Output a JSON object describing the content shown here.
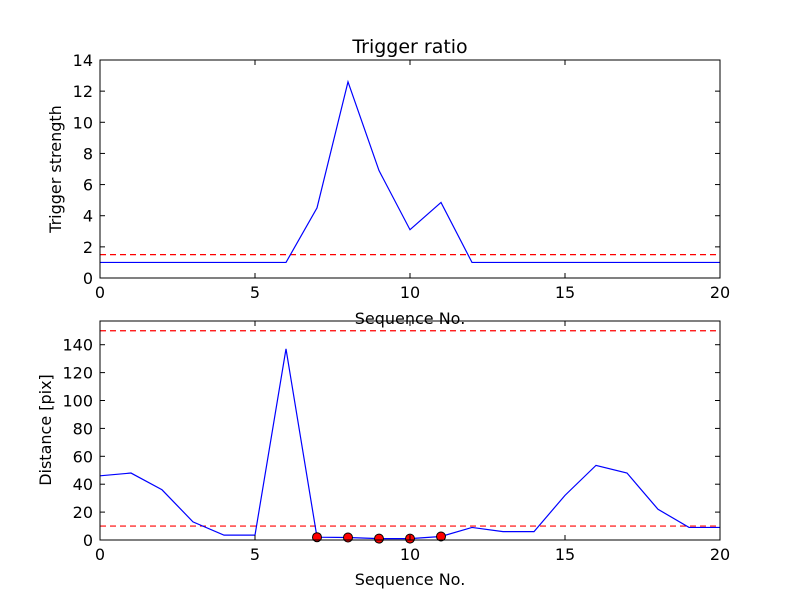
{
  "chart_data": [
    {
      "type": "line",
      "title": "Trigger ratio",
      "xlabel": "Sequence No.",
      "ylabel": "Trigger strength",
      "xlim": [
        0,
        20
      ],
      "ylim": [
        0,
        14
      ],
      "xticks": [
        0,
        5,
        10,
        15,
        20
      ],
      "yticks": [
        0,
        2,
        4,
        6,
        8,
        10,
        12,
        14
      ],
      "grid": false,
      "series": [
        {
          "color": "#0000ff",
          "style": "solid",
          "x": [
            0,
            1,
            2,
            3,
            4,
            5,
            6,
            7,
            8,
            9,
            10,
            11,
            12,
            13,
            14,
            15,
            16,
            17,
            18,
            19,
            20
          ],
          "y": [
            1.0,
            1.0,
            1.0,
            1.0,
            1.0,
            1.0,
            1.0,
            4.5,
            12.6,
            6.9,
            3.1,
            4.85,
            1.0,
            1.0,
            1.0,
            1.0,
            1.0,
            1.0,
            1.0,
            1.0,
            1.0
          ]
        }
      ],
      "hlines": [
        {
          "y": 1.5,
          "color": "#ff0000",
          "style": "dashed"
        }
      ],
      "markers": []
    },
    {
      "type": "line",
      "title": "",
      "xlabel": "Sequence No.",
      "ylabel": "Distance [pix]",
      "xlim": [
        0,
        20
      ],
      "ylim": [
        0,
        157
      ],
      "xticks": [
        0,
        5,
        10,
        15,
        20
      ],
      "yticks": [
        0,
        20,
        40,
        60,
        80,
        100,
        120,
        140
      ],
      "grid": false,
      "series": [
        {
          "color": "#0000ff",
          "style": "solid",
          "x": [
            0,
            1,
            2,
            3,
            4,
            5,
            6,
            7,
            8,
            9,
            10,
            11,
            12,
            13,
            14,
            15,
            16,
            17,
            18,
            19,
            20
          ],
          "y": [
            46,
            48,
            36,
            13,
            3.5,
            3.5,
            137,
            2,
            1.8,
            1,
            1,
            2.5,
            9,
            6,
            6,
            32,
            53.5,
            48,
            22,
            9,
            9
          ]
        }
      ],
      "hlines": [
        {
          "y": 150,
          "color": "#ff0000",
          "style": "dashed"
        },
        {
          "y": 10,
          "color": "#ff0000",
          "style": "dashed"
        }
      ],
      "markers": [
        {
          "x": 7,
          "y": 2,
          "color": "#ff0000"
        },
        {
          "x": 8,
          "y": 1.8,
          "color": "#ff0000"
        },
        {
          "x": 9,
          "y": 1,
          "color": "#ff0000"
        },
        {
          "x": 10,
          "y": 1,
          "color": "#ff0000"
        },
        {
          "x": 11,
          "y": 2.5,
          "color": "#ff0000"
        }
      ]
    }
  ]
}
